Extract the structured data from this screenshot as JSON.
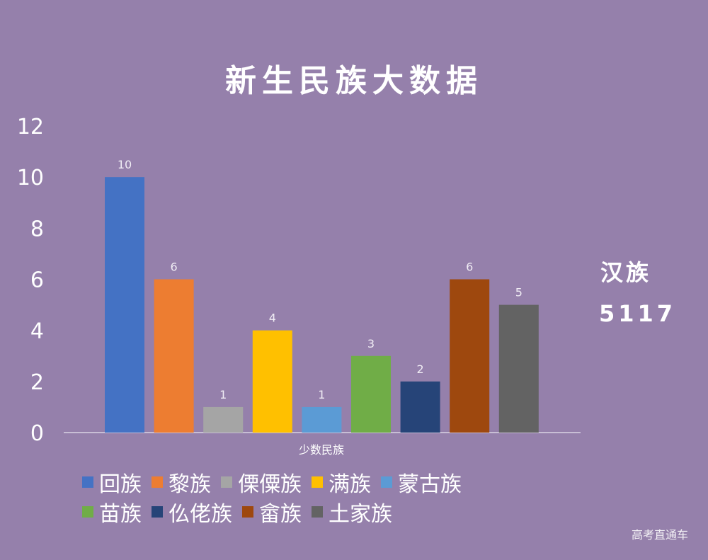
{
  "chart_data": {
    "type": "bar",
    "title": "新生民族大数据",
    "xlabel": "少数民族",
    "ylabel": "",
    "ylim": [
      0,
      12
    ],
    "yticks": [
      0,
      2,
      4,
      6,
      8,
      10,
      12
    ],
    "grid": false,
    "legend_position": "bottom",
    "series": [
      {
        "name": "回族",
        "values": [
          10
        ],
        "color": "#4472c4"
      },
      {
        "name": "黎族",
        "values": [
          6
        ],
        "color": "#ed7d31"
      },
      {
        "name": "傈僳族",
        "values": [
          1
        ],
        "color": "#a5a5a5"
      },
      {
        "name": "满族",
        "values": [
          4
        ],
        "color": "#ffc000"
      },
      {
        "name": "蒙古族",
        "values": [
          1
        ],
        "color": "#5b9bd5"
      },
      {
        "name": "苗族",
        "values": [
          3
        ],
        "color": "#70ad47"
      },
      {
        "name": "仫佬族",
        "values": [
          2
        ],
        "color": "#264478"
      },
      {
        "name": "畲族",
        "values": [
          6
        ],
        "color": "#9e480e"
      },
      {
        "name": "土家族",
        "values": [
          5
        ],
        "color": "#636363"
      }
    ]
  },
  "annotation": {
    "label": "汉族",
    "value": "5117"
  },
  "watermark": "高考直通车",
  "colors": {
    "background": "#9580ab",
    "axis": "#e8e2ee"
  }
}
